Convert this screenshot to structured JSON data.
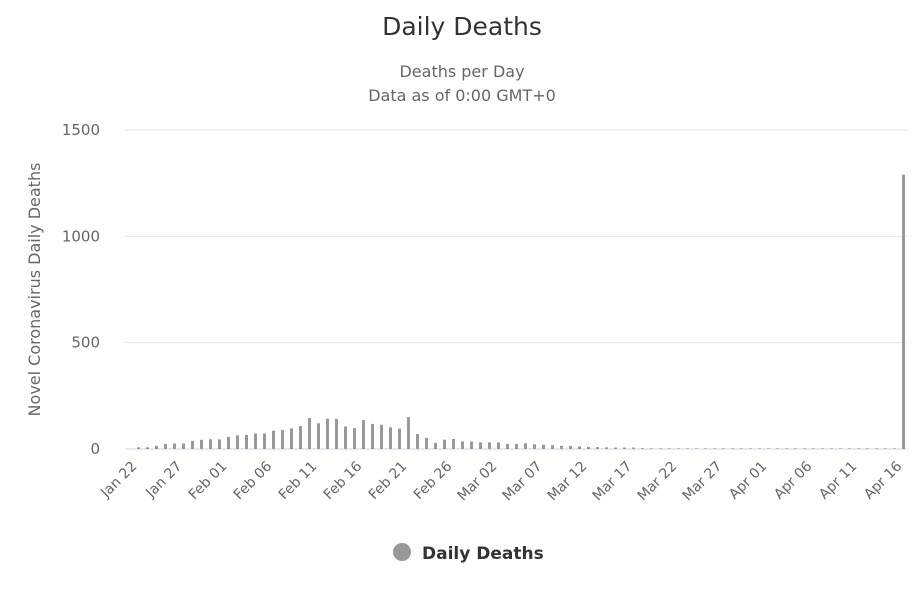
{
  "chart_data": {
    "type": "bar",
    "title": "Daily Deaths",
    "subtitle_lines": [
      "Deaths per Day",
      "Data as of 0:00 GMT+0"
    ],
    "ylabel": "Novel Coronavirus Daily Deaths",
    "xlabel": "",
    "ylim": [
      0,
      1500
    ],
    "yticks": [
      0,
      500,
      1000,
      1500
    ],
    "grid": true,
    "legend_position": "bottom-center",
    "x_tick_labels": [
      "Jan 22",
      "Jan 27",
      "Feb 01",
      "Feb 06",
      "Feb 11",
      "Feb 16",
      "Feb 21",
      "Feb 26",
      "Mar 02",
      "Mar 07",
      "Mar 12",
      "Mar 17",
      "Mar 22",
      "Mar 27",
      "Apr 01",
      "Apr 06",
      "Apr 11",
      "Apr 16"
    ],
    "categories": [
      "Jan 22",
      "Jan 23",
      "Jan 24",
      "Jan 25",
      "Jan 26",
      "Jan 27",
      "Jan 28",
      "Jan 29",
      "Jan 30",
      "Jan 31",
      "Feb 01",
      "Feb 02",
      "Feb 03",
      "Feb 04",
      "Feb 05",
      "Feb 06",
      "Feb 07",
      "Feb 08",
      "Feb 09",
      "Feb 10",
      "Feb 11",
      "Feb 12",
      "Feb 13",
      "Feb 14",
      "Feb 15",
      "Feb 16",
      "Feb 17",
      "Feb 18",
      "Feb 19",
      "Feb 20",
      "Feb 21",
      "Feb 22",
      "Feb 23",
      "Feb 24",
      "Feb 25",
      "Feb 26",
      "Feb 27",
      "Feb 28",
      "Feb 29",
      "Mar 01",
      "Mar 02",
      "Mar 03",
      "Mar 04",
      "Mar 05",
      "Mar 06",
      "Mar 07",
      "Mar 08",
      "Mar 09",
      "Mar 10",
      "Mar 11",
      "Mar 12",
      "Mar 13",
      "Mar 14",
      "Mar 15",
      "Mar 16",
      "Mar 17",
      "Mar 18",
      "Mar 19",
      "Mar 20",
      "Mar 21",
      "Mar 22",
      "Mar 23",
      "Mar 24",
      "Mar 25",
      "Mar 26",
      "Mar 27",
      "Mar 28",
      "Mar 29",
      "Mar 30",
      "Mar 31",
      "Apr 01",
      "Apr 02",
      "Apr 03",
      "Apr 04",
      "Apr 05",
      "Apr 06",
      "Apr 07",
      "Apr 08",
      "Apr 09",
      "Apr 10",
      "Apr 11",
      "Apr 12",
      "Apr 13",
      "Apr 14",
      "Apr 15",
      "Apr 16",
      "Apr 17"
    ],
    "series": [
      {
        "name": "Daily Deaths",
        "color": "#999999",
        "values": [
          0,
          8,
          8,
          15,
          24,
          26,
          26,
          38,
          43,
          46,
          45,
          57,
          64,
          66,
          73,
          73,
          86,
          89,
          97,
          108,
          146,
          121,
          143,
          142,
          106,
          98,
          136,
          118,
          114,
          102,
          96,
          150,
          70,
          52,
          29,
          44,
          47,
          36,
          35,
          31,
          31,
          31,
          24,
          24,
          27,
          22,
          20,
          18,
          15,
          14,
          12,
          10,
          9,
          8,
          7,
          7,
          7,
          4,
          3,
          3,
          3,
          3,
          3,
          3,
          3,
          3,
          3,
          3,
          3,
          3,
          3,
          3,
          3,
          3,
          3,
          3,
          3,
          3,
          3,
          3,
          3,
          3,
          3,
          3,
          3,
          3,
          1290
        ]
      }
    ]
  },
  "legend": {
    "label": "Daily Deaths",
    "color": "#999999"
  },
  "colors": {
    "grid": "#e6e6e6",
    "axis_line": "#ccd6eb",
    "text": "#333333",
    "sub_text": "#666666"
  }
}
